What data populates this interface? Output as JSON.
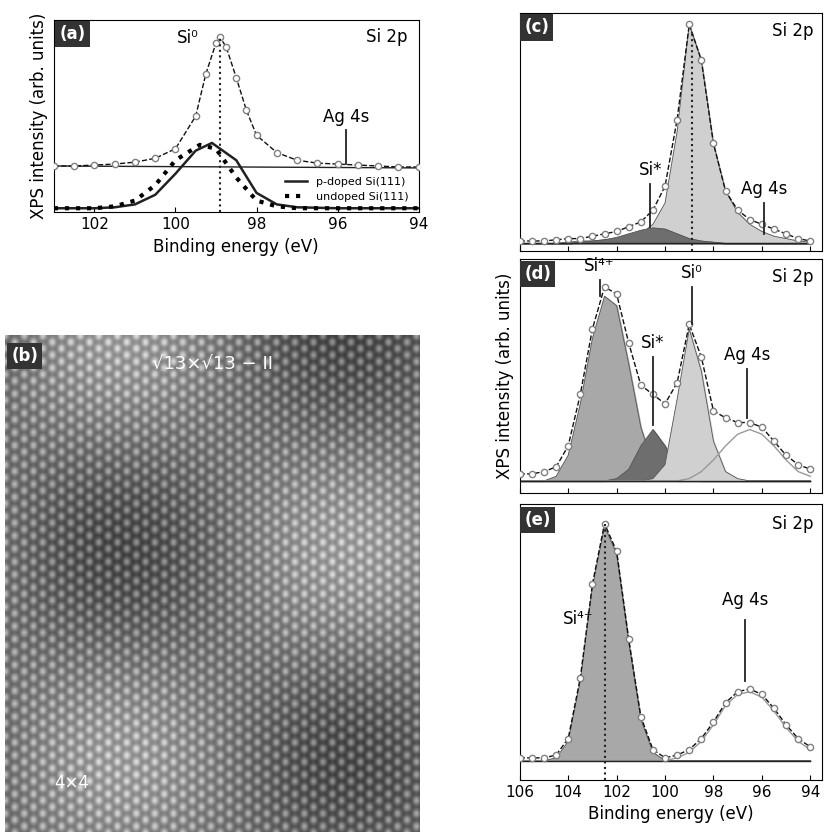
{
  "chart_data": [
    {
      "panel": "(a)",
      "type": "line",
      "title": "Si 2p",
      "xlabel": "Binding energy (eV)",
      "ylabel": "XPS intensity (arb. units)",
      "xlim": [
        103,
        94
      ],
      "xticks": [
        102,
        100,
        98,
        96,
        94
      ],
      "ylim": [
        0,
        1
      ],
      "tick_labels": "x",
      "legend": "lower right",
      "reference_x": 98.9,
      "measured": {
        "color": "#808080",
        "marker": "o",
        "x": [
          103,
          102.5,
          102,
          101.5,
          101,
          100.5,
          100,
          99.5,
          99.25,
          99,
          98.9,
          98.75,
          98.5,
          98.25,
          98,
          97.5,
          97,
          96.5,
          96,
          95.5,
          95,
          94.5,
          94
        ],
        "values": [
          0.24,
          0.24,
          0.245,
          0.25,
          0.26,
          0.28,
          0.33,
          0.5,
          0.72,
          0.88,
          0.91,
          0.86,
          0.7,
          0.53,
          0.4,
          0.31,
          0.27,
          0.255,
          0.25,
          0.245,
          0.24,
          0.235,
          0.235
        ]
      },
      "background": {
        "x": [
          103,
          94
        ],
        "values": [
          0.24,
          0.23
        ]
      },
      "components": [],
      "series": [
        {
          "name": "p-doped Si(111)",
          "color": "#222222",
          "line_style": "solid",
          "x": [
            103,
            102,
            101.5,
            101,
            100.5,
            100,
            99.5,
            99.1,
            98.5,
            98,
            97.5,
            97,
            96,
            95,
            94
          ],
          "values": [
            0.02,
            0.02,
            0.025,
            0.04,
            0.09,
            0.2,
            0.32,
            0.36,
            0.27,
            0.1,
            0.04,
            0.025,
            0.02,
            0.02,
            0.02
          ]
        },
        {
          "name": "undoped Si(111)",
          "color": "#000000",
          "line_style": "dotted",
          "x": [
            103,
            102,
            101.5,
            101,
            100.5,
            100,
            99.4,
            99,
            98.5,
            98,
            97.5,
            97,
            96,
            95,
            94
          ],
          "values": [
            0.02,
            0.02,
            0.03,
            0.06,
            0.14,
            0.27,
            0.35,
            0.33,
            0.18,
            0.06,
            0.03,
            0.02,
            0.02,
            0.02,
            0.02
          ]
        }
      ],
      "annotations": [
        {
          "text": "Si⁰",
          "x": 99.7,
          "y": 0.86
        },
        {
          "text": "Ag 4s",
          "x": 95.8,
          "y": 0.45,
          "line": [
            0.43,
            0.25
          ]
        }
      ]
    },
    {
      "panel": "(b)",
      "type": "image",
      "labels": [
        "√13×√13 − II",
        "4×4"
      ]
    },
    {
      "panel": "(c)",
      "type": "line",
      "title": "Si 2p",
      "xlim": [
        106,
        93.5
      ],
      "xticks": [
        106,
        104,
        102,
        100,
        98,
        96,
        94
      ],
      "ylim": [
        0,
        1
      ],
      "tick_labels": false,
      "reference_x": 98.9,
      "measured": {
        "color": "#808080",
        "marker": "o",
        "x": [
          106,
          105.5,
          105,
          104.5,
          104,
          103.5,
          103,
          102.5,
          102,
          101.5,
          101,
          100.5,
          100,
          99.5,
          99,
          98.5,
          98,
          97.5,
          97,
          96.5,
          96,
          95.5,
          95,
          94.5,
          94
        ],
        "values": [
          0.04,
          0.04,
          0.04,
          0.045,
          0.05,
          0.05,
          0.06,
          0.07,
          0.08,
          0.1,
          0.12,
          0.17,
          0.27,
          0.55,
          0.95,
          0.8,
          0.45,
          0.25,
          0.17,
          0.13,
          0.11,
          0.09,
          0.07,
          0.05,
          0.04
        ]
      },
      "background": {
        "x": [
          106,
          94
        ],
        "values": [
          0.03,
          0.03
        ]
      },
      "components": [
        {
          "type": "area",
          "color": "#d0d0d0",
          "values": [
            0.03,
            0.03,
            0.03,
            0.03,
            0.035,
            0.04,
            0.04,
            0.045,
            0.05,
            0.06,
            0.07,
            0.11,
            0.2,
            0.5,
            0.95,
            0.8,
            0.45,
            0.25,
            0.16,
            0.11,
            0.08,
            0.06,
            0.05,
            0.04,
            0.035
          ]
        },
        {
          "type": "area",
          "color": "#6e6e6e",
          "values": [
            0.03,
            0.03,
            0.03,
            0.03,
            0.03,
            0.035,
            0.04,
            0.045,
            0.055,
            0.07,
            0.085,
            0.095,
            0.09,
            0.07,
            0.05,
            0.04,
            0.035,
            0.03,
            0.03,
            0.03,
            0.03,
            0.03,
            0.03,
            0.03,
            0.03
          ]
        }
      ],
      "series": [],
      "annotations": [
        {
          "text": "Si*",
          "x": 100.6,
          "y": 0.3,
          "line": [
            0.28,
            0.1
          ]
        },
        {
          "text": "Ag 4s",
          "x": 95.9,
          "y": 0.22,
          "line": [
            0.2,
            0.07
          ]
        }
      ]
    },
    {
      "panel": "(d)",
      "type": "line",
      "title": "Si 2p",
      "ylabel": "XPS intensity (arb. units)",
      "xlim": [
        106,
        93.5
      ],
      "xticks": [
        106,
        104,
        102,
        100,
        98,
        96,
        94
      ],
      "ylim": [
        0,
        1
      ],
      "tick_labels": false,
      "measured": {
        "color": "#808080",
        "marker": "o",
        "x": [
          106,
          105.5,
          105,
          104.5,
          104,
          103.5,
          103,
          102.5,
          102,
          101.5,
          101,
          100.5,
          100,
          99.5,
          99,
          98.5,
          98,
          97.5,
          97,
          96.5,
          96,
          95.5,
          95,
          94.5,
          94
        ],
        "values": [
          0.08,
          0.08,
          0.09,
          0.11,
          0.2,
          0.42,
          0.7,
          0.88,
          0.85,
          0.64,
          0.46,
          0.42,
          0.38,
          0.47,
          0.72,
          0.58,
          0.35,
          0.32,
          0.3,
          0.3,
          0.28,
          0.22,
          0.16,
          0.12,
          0.1
        ]
      },
      "background": {
        "x": [
          106,
          94
        ],
        "values": [
          0.05,
          0.05
        ]
      },
      "components": [
        {
          "type": "area",
          "color": "#a8a8a8",
          "values": [
            0.05,
            0.05,
            0.05,
            0.07,
            0.16,
            0.38,
            0.66,
            0.84,
            0.8,
            0.55,
            0.28,
            0.12,
            0.07,
            0.05,
            0.05,
            0.05,
            0.05,
            0.05,
            0.05,
            0.05,
            0.05,
            0.05,
            0.05,
            0.05,
            0.05
          ]
        },
        {
          "type": "area",
          "color": "#6e6e6e",
          "values": [
            0.05,
            0.05,
            0.05,
            0.05,
            0.05,
            0.05,
            0.05,
            0.05,
            0.06,
            0.1,
            0.2,
            0.27,
            0.2,
            0.1,
            0.06,
            0.05,
            0.05,
            0.05,
            0.05,
            0.05,
            0.05,
            0.05,
            0.05,
            0.05,
            0.05
          ]
        },
        {
          "type": "area",
          "color": "#d0d0d0",
          "values": [
            0.05,
            0.05,
            0.05,
            0.05,
            0.05,
            0.05,
            0.05,
            0.05,
            0.05,
            0.05,
            0.05,
            0.06,
            0.12,
            0.4,
            0.7,
            0.52,
            0.22,
            0.09,
            0.06,
            0.05,
            0.05,
            0.05,
            0.05,
            0.05,
            0.05
          ]
        },
        {
          "type": "line",
          "color": "#999999",
          "values": [
            0.05,
            0.05,
            0.05,
            0.05,
            0.05,
            0.05,
            0.05,
            0.05,
            0.05,
            0.05,
            0.05,
            0.05,
            0.05,
            0.05,
            0.06,
            0.09,
            0.14,
            0.2,
            0.25,
            0.27,
            0.25,
            0.2,
            0.14,
            0.09,
            0.07
          ]
        }
      ],
      "series": [],
      "annotations": [
        {
          "text": "Si⁴⁺",
          "x": 102.7,
          "y": 0.93,
          "line": [
            0.91,
            0.84
          ]
        },
        {
          "text": "Si*",
          "x": 100.5,
          "y": 0.6,
          "line": [
            0.58,
            0.29
          ]
        },
        {
          "text": "Si⁰",
          "x": 98.9,
          "y": 0.9,
          "line": [
            0.88,
            0.72
          ]
        },
        {
          "text": "Ag 4s",
          "x": 96.6,
          "y": 0.55,
          "line": [
            0.53,
            0.32
          ]
        }
      ]
    },
    {
      "panel": "(e)",
      "type": "line",
      "title": "Si 2p",
      "xlabel": "Binding energy (eV)",
      "xlim": [
        106,
        93.5
      ],
      "xticks": [
        106,
        104,
        102,
        100,
        98,
        96,
        94
      ],
      "ylim": [
        0,
        1
      ],
      "tick_labels": "x",
      "reference_x": 102.5,
      "measured": {
        "color": "#808080",
        "marker": "o",
        "x": [
          106,
          105.5,
          105,
          104.5,
          104,
          103.5,
          103,
          102.5,
          102,
          101.5,
          101,
          100.5,
          100,
          99.5,
          99,
          98.5,
          98,
          97.5,
          97,
          96.5,
          96,
          95.5,
          95,
          94.5,
          94
        ],
        "values": [
          0.08,
          0.08,
          0.08,
          0.09,
          0.15,
          0.37,
          0.71,
          0.93,
          0.83,
          0.51,
          0.23,
          0.11,
          0.08,
          0.09,
          0.11,
          0.15,
          0.21,
          0.28,
          0.32,
          0.33,
          0.31,
          0.26,
          0.2,
          0.15,
          0.12
        ]
      },
      "background": {
        "x": [
          106,
          94
        ],
        "values": [
          0.07,
          0.07
        ]
      },
      "components": [
        {
          "type": "area",
          "color": "#a8a8a8",
          "values": [
            0.07,
            0.07,
            0.07,
            0.08,
            0.14,
            0.36,
            0.7,
            0.92,
            0.82,
            0.5,
            0.22,
            0.1,
            0.07,
            0.07,
            0.07,
            0.07,
            0.07,
            0.07,
            0.07,
            0.07,
            0.07,
            0.07,
            0.07,
            0.07,
            0.07
          ]
        },
        {
          "type": "line",
          "color": "#999999",
          "values": [
            0.07,
            0.07,
            0.07,
            0.07,
            0.07,
            0.07,
            0.07,
            0.07,
            0.07,
            0.07,
            0.07,
            0.07,
            0.07,
            0.08,
            0.1,
            0.14,
            0.2,
            0.27,
            0.31,
            0.32,
            0.3,
            0.25,
            0.19,
            0.14,
            0.11
          ]
        }
      ],
      "series": [],
      "annotations": [
        {
          "text": "Si⁴⁺",
          "x": 103.6,
          "y": 0.55
        },
        {
          "text": "Ag 4s",
          "x": 96.7,
          "y": 0.62,
          "line": [
            0.58,
            0.36
          ]
        }
      ]
    }
  ]
}
